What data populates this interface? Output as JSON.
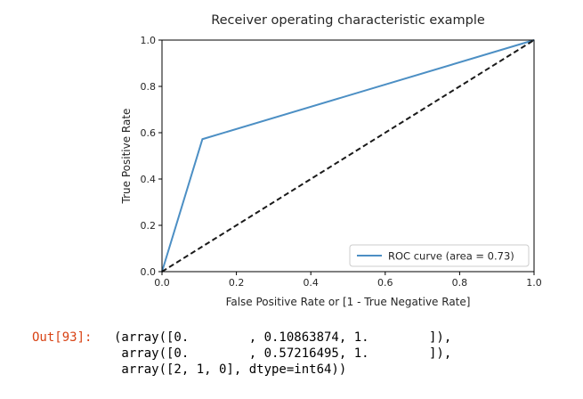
{
  "chart_data": {
    "type": "line",
    "title": "Receiver operating characteristic example",
    "xlabel": "False Positive Rate or [1 - True Negative Rate]",
    "ylabel": "True Positive Rate",
    "xlim": [
      0.0,
      1.0
    ],
    "ylim": [
      0.0,
      1.0
    ],
    "xticks": [
      "0.0",
      "0.2",
      "0.4",
      "0.6",
      "0.8",
      "1.0"
    ],
    "yticks": [
      "0.0",
      "0.2",
      "0.4",
      "0.6",
      "0.8",
      "1.0"
    ],
    "grid": false,
    "legend": {
      "position": "lower right",
      "entries": [
        "ROC curve (area = 0.73)"
      ]
    },
    "series": [
      {
        "name": "ROC curve (area = 0.73)",
        "x": [
          0.0,
          0.10863874,
          1.0
        ],
        "y": [
          0.0,
          0.57216495,
          1.0
        ],
        "color": "#4c8fc4",
        "style": "solid"
      },
      {
        "x": [
          0.0,
          1.0
        ],
        "y": [
          0.0,
          1.0
        ],
        "color": "#1a1a1a",
        "style": "dashed"
      }
    ]
  },
  "output": {
    "prompt": "Out[93]:",
    "lines": [
      "(array([0.        , 0.10863874, 1.        ]),",
      " array([0.        , 0.57216495, 1.        ]),",
      " array([2, 1, 0], dtype=int64))"
    ]
  }
}
